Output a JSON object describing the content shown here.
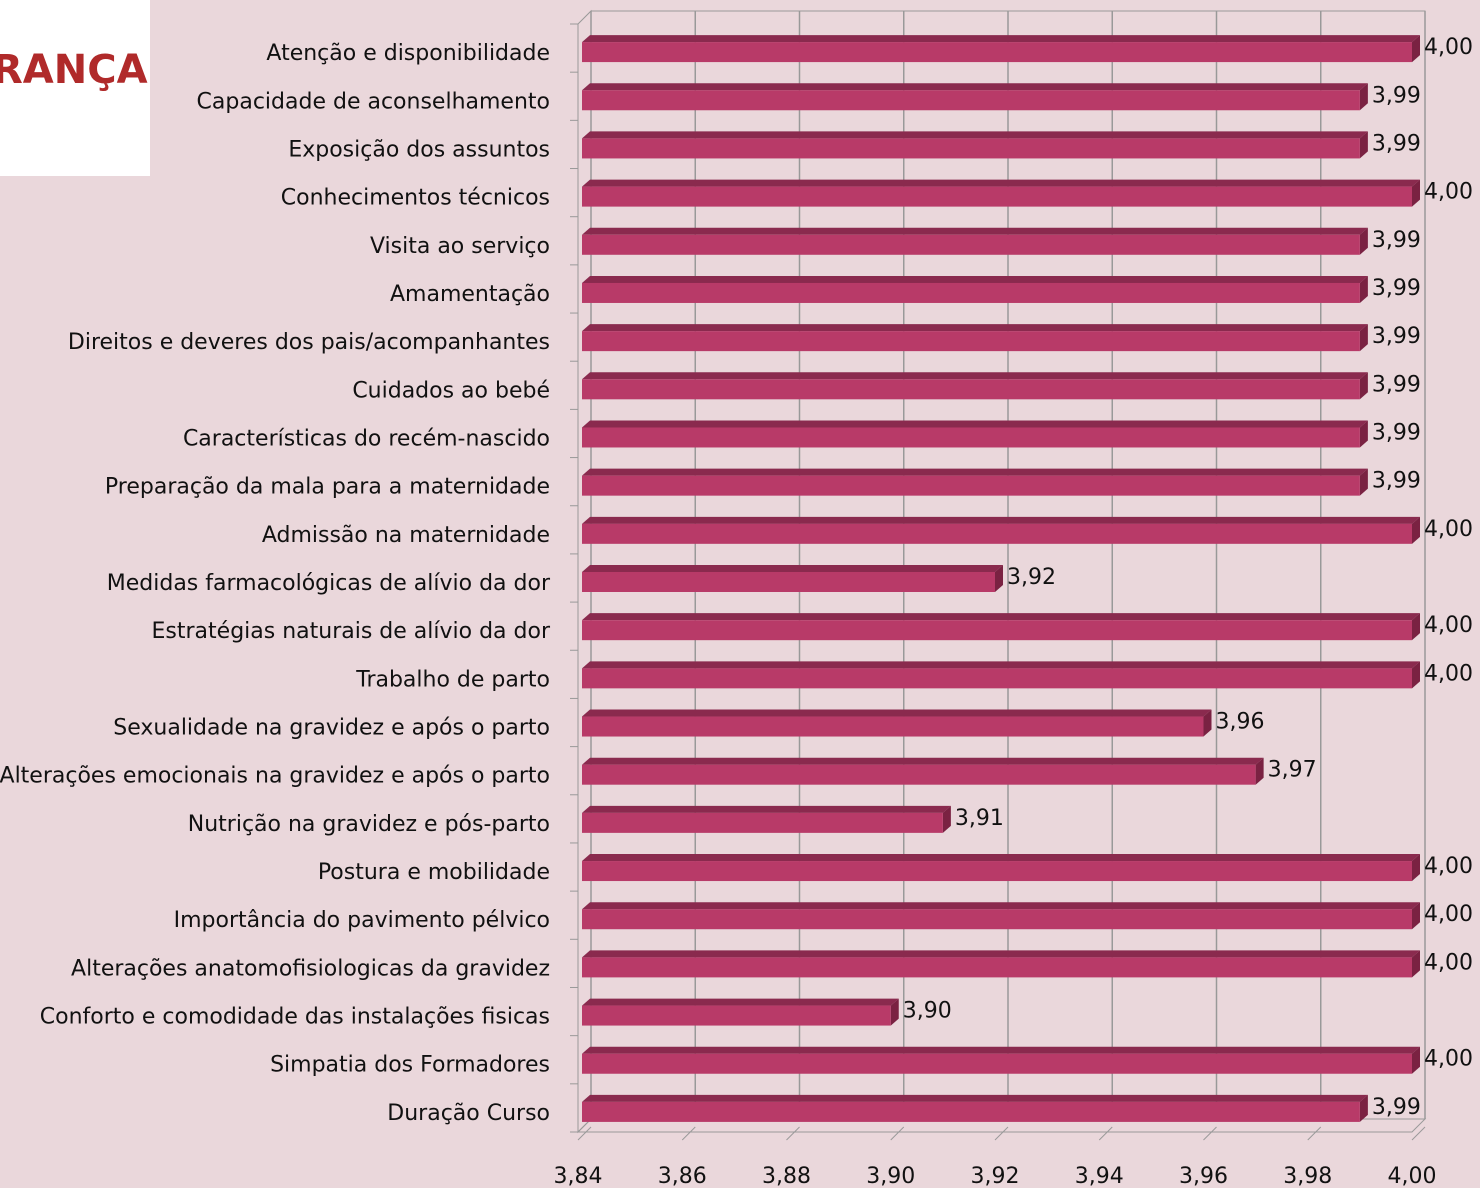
{
  "logo_text": "RANÇA",
  "chart_data": {
    "type": "bar3d-horizontal",
    "categories": [
      "Atenção e disponibilidade",
      "Capacidade de aconselhamento",
      "Exposição dos assuntos",
      "Conhecimentos técnicos",
      "Visita ao serviço",
      "Amamentação",
      "Direitos e deveres dos pais/acompanhantes",
      "Cuidados ao bebé",
      "Características do recém-nascido",
      "Preparação da mala para a maternidade",
      "Admissão na maternidade",
      "Medidas farmacológicas de alívio da dor",
      "Estratégias naturais de alívio da dor",
      "Trabalho de parto",
      "Sexualidade na gravidez e após o parto",
      "Alterações emocionais na gravidez e após o parto",
      "Nutrição na gravidez e pós-parto",
      "Postura e mobilidade",
      "Importância do pavimento pélvico",
      "Alterações anatomofisiologicas da gravidez",
      "Conforto e comodidade das instalações fisicas",
      "Simpatia dos Formadores",
      "Duração Curso"
    ],
    "values": [
      4.0,
      3.99,
      3.99,
      4.0,
      3.99,
      3.99,
      3.99,
      3.99,
      3.99,
      3.99,
      4.0,
      3.92,
      4.0,
      4.0,
      3.96,
      3.97,
      3.91,
      4.0,
      4.0,
      4.0,
      3.9,
      4.0,
      3.99
    ],
    "value_labels": [
      "4,00",
      "3,99",
      "3,99",
      "4,00",
      "3,99",
      "3,99",
      "3,99",
      "3,99",
      "3,99",
      "3,99",
      "4,00",
      "3,92",
      "4,00",
      "4,00",
      "3,96",
      "3,97",
      "3,91",
      "4,00",
      "4,00",
      "4,00",
      "3,90",
      "4,00",
      "3,99"
    ],
    "color": "#b83a68",
    "xlim": [
      3.84,
      4.0
    ],
    "xticks": [
      {
        "value": 3.84,
        "label": "3,84"
      },
      {
        "value": 3.86,
        "label": "3,86"
      },
      {
        "value": 3.88,
        "label": "3,88"
      },
      {
        "value": 3.9,
        "label": "3,90"
      },
      {
        "value": 3.92,
        "label": "3,92"
      },
      {
        "value": 3.94,
        "label": "3,94"
      },
      {
        "value": 3.96,
        "label": "3,96"
      },
      {
        "value": 3.98,
        "label": "3,98"
      },
      {
        "value": 4.0,
        "label": "4,00"
      }
    ],
    "grid": true
  }
}
